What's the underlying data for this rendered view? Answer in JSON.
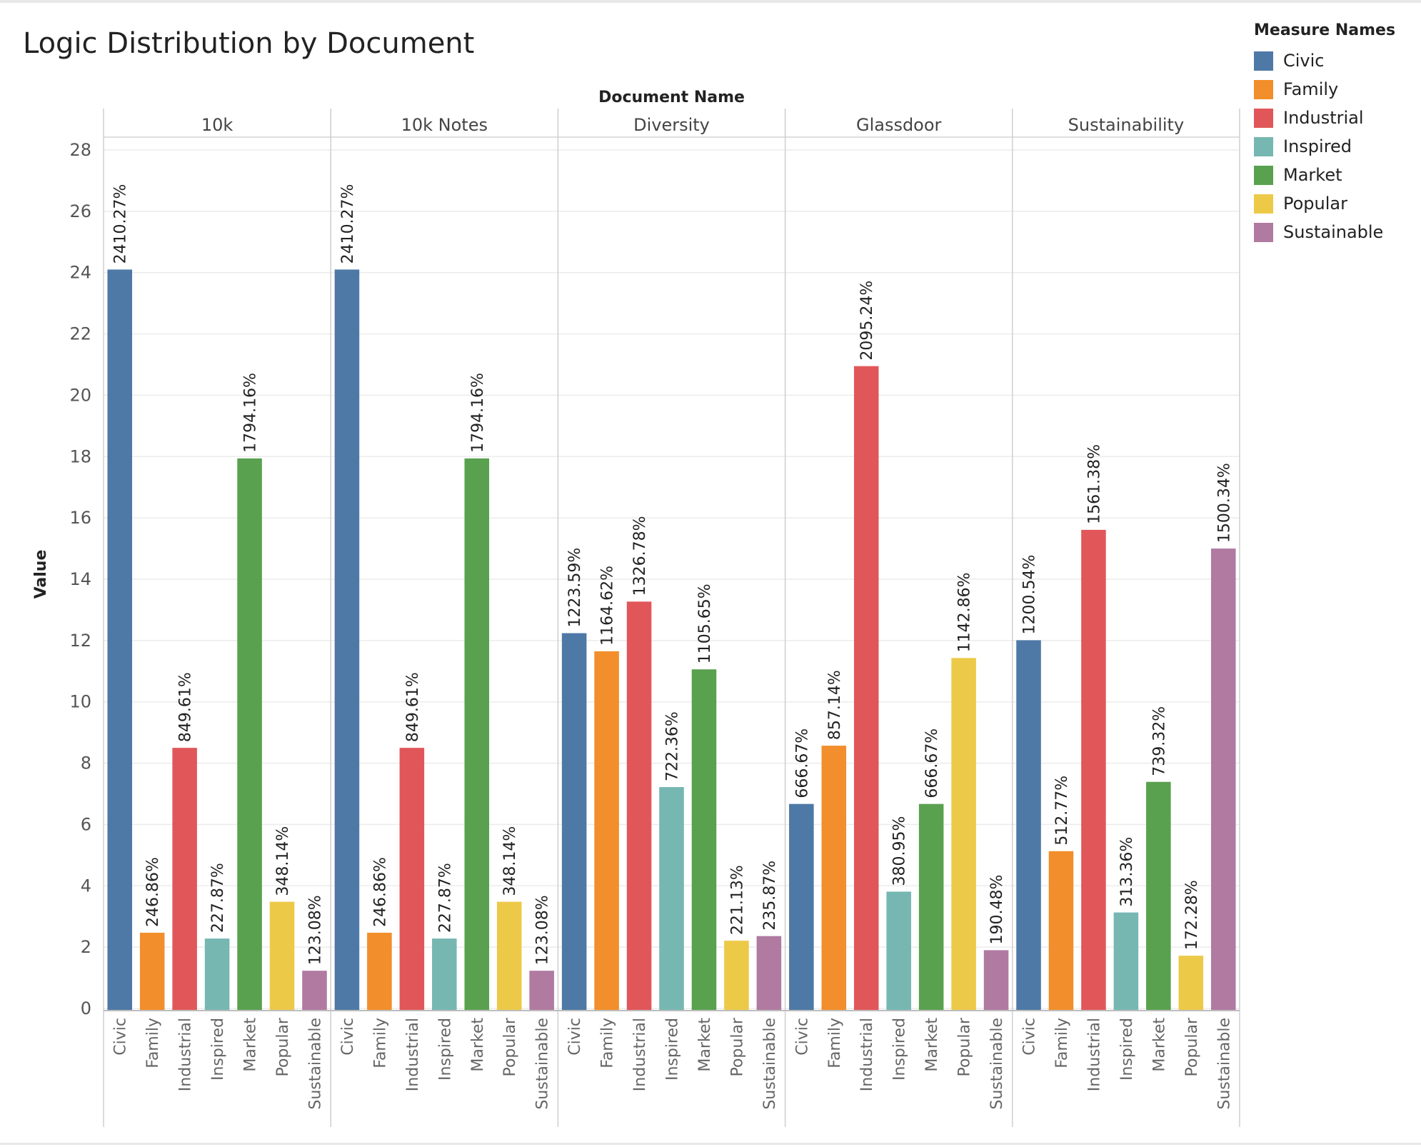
{
  "title": "Logic Distribution by Document",
  "legend": {
    "title": "Measure Names",
    "items": [
      {
        "label": "Civic",
        "color": "#4e79a7"
      },
      {
        "label": "Family",
        "color": "#f28e2b"
      },
      {
        "label": "Industrial",
        "color": "#e15759"
      },
      {
        "label": "Inspired",
        "color": "#76b7b2"
      },
      {
        "label": "Market",
        "color": "#59a14f"
      },
      {
        "label": "Popular",
        "color": "#edc948"
      },
      {
        "label": "Sustainable",
        "color": "#b07aa1"
      }
    ]
  },
  "chart_data": {
    "type": "bar",
    "title": "Logic Distribution by Document",
    "column_header": "Document Name",
    "ylabel": "Value",
    "ylim": [
      0,
      28
    ],
    "yticks": [
      0,
      2,
      4,
      6,
      8,
      10,
      12,
      14,
      16,
      18,
      20,
      22,
      24,
      26,
      28
    ],
    "grid": true,
    "legend_position": "top-right",
    "categories": [
      "Civic",
      "Family",
      "Industrial",
      "Inspired",
      "Market",
      "Popular",
      "Sustainable"
    ],
    "panels": [
      {
        "name": "10k",
        "values": [
          24.1,
          2.47,
          8.5,
          2.28,
          17.94,
          3.48,
          1.23
        ],
        "labels": [
          "2410.27%",
          "246.86%",
          "849.61%",
          "227.87%",
          "1794.16%",
          "348.14%",
          "123.08%"
        ]
      },
      {
        "name": "10k Notes",
        "values": [
          24.1,
          2.47,
          8.5,
          2.28,
          17.94,
          3.48,
          1.23
        ],
        "labels": [
          "2410.27%",
          "246.86%",
          "849.61%",
          "227.87%",
          "1794.16%",
          "348.14%",
          "123.08%"
        ]
      },
      {
        "name": "Diversity",
        "values": [
          12.24,
          11.65,
          13.27,
          7.22,
          11.06,
          2.21,
          2.36
        ],
        "labels": [
          "1223.59%",
          "1164.62%",
          "1326.78%",
          "722.36%",
          "1105.65%",
          "221.13%",
          "235.87%"
        ]
      },
      {
        "name": "Glassdoor",
        "values": [
          6.67,
          8.57,
          20.95,
          3.81,
          6.67,
          11.43,
          1.9
        ],
        "labels": [
          "666.67%",
          "857.14%",
          "2095.24%",
          "380.95%",
          "666.67%",
          "1142.86%",
          "190.48%"
        ]
      },
      {
        "name": "Sustainability",
        "values": [
          12.01,
          5.13,
          15.61,
          3.13,
          7.39,
          1.72,
          15.0
        ],
        "labels": [
          "1200.54%",
          "512.77%",
          "1561.38%",
          "313.36%",
          "739.32%",
          "172.28%",
          "1500.34%"
        ]
      }
    ]
  }
}
